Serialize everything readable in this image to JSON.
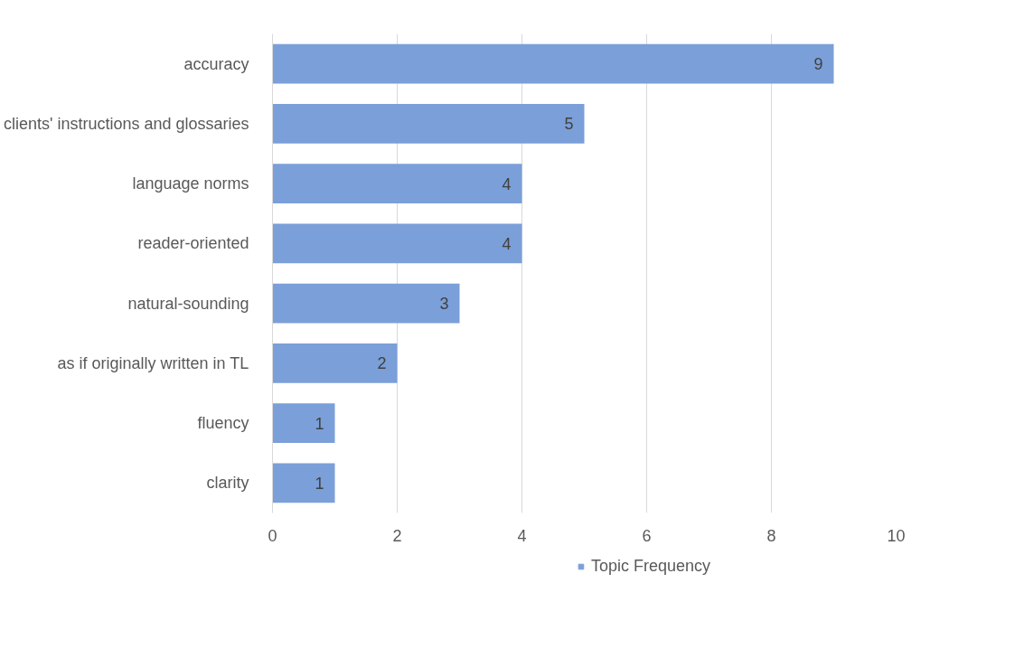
{
  "chart_data": {
    "type": "bar",
    "orientation": "horizontal",
    "categories": [
      "accuracy",
      "clients' instructions and glossaries",
      "language norms",
      "reader-oriented",
      "natural-sounding",
      "as if originally written in TL",
      "fluency",
      "clarity"
    ],
    "series": [
      {
        "name": "Topic Frequency",
        "color": "#7b9fd8",
        "values": [
          9,
          5,
          4,
          4,
          3,
          2,
          1,
          1
        ]
      }
    ],
    "xlim": [
      0,
      10
    ],
    "xticks": [
      0,
      2,
      4,
      6,
      8,
      10
    ],
    "grid": "x",
    "legend": "bottom",
    "data_labels": true
  }
}
